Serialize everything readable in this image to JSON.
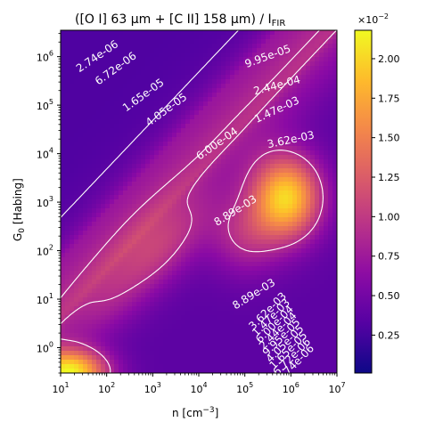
{
  "chart_data": {
    "type": "heatmap",
    "title": "([O I] 63 μm + [C II] 158 μm) / I",
    "title_sub": "FIR",
    "xlabel": "n [cm",
    "xlabel_sup": "−3",
    "xlabel_end": "]",
    "ylabel": "G",
    "ylabel_sub": "0",
    "ylabel_end": " [Habing]",
    "x_scale": "log",
    "y_scale": "log",
    "xlim": [
      10,
      10000000
    ],
    "ylim": [
      0.3,
      3500000
    ],
    "x_ticks": [
      {
        "value": 10,
        "base": "10",
        "exp": "1"
      },
      {
        "value": 100,
        "base": "10",
        "exp": "2"
      },
      {
        "value": 1000,
        "base": "10",
        "exp": "3"
      },
      {
        "value": 10000,
        "base": "10",
        "exp": "4"
      },
      {
        "value": 100000,
        "base": "10",
        "exp": "5"
      },
      {
        "value": 1000000,
        "base": "10",
        "exp": "6"
      },
      {
        "value": 10000000,
        "base": "10",
        "exp": "7"
      }
    ],
    "y_ticks": [
      {
        "value": 1,
        "base": "10",
        "exp": "0"
      },
      {
        "value": 10,
        "base": "10",
        "exp": "1"
      },
      {
        "value": 100,
        "base": "10",
        "exp": "2"
      },
      {
        "value": 1000,
        "base": "10",
        "exp": "3"
      },
      {
        "value": 10000,
        "base": "10",
        "exp": "4"
      },
      {
        "value": 100000,
        "base": "10",
        "exp": "5"
      },
      {
        "value": 1000000,
        "base": "10",
        "exp": "6"
      }
    ],
    "colormap": "plasma",
    "colorbar": {
      "range": [
        0.0001,
        0.0218
      ],
      "ticks": [
        0.0025,
        0.005,
        0.0075,
        0.01,
        0.0125,
        0.015,
        0.0175,
        0.02
      ],
      "tick_labels": [
        "0.25",
        "0.50",
        "0.75",
        "1.00",
        "1.25",
        "1.50",
        "1.75",
        "2.00"
      ],
      "multiplier_base": "×10",
      "multiplier_exp": "−2"
    },
    "contour_levels": [
      {
        "value": 2.74e-06,
        "label": "2.74e-06",
        "color": "#ffffff"
      },
      {
        "value": 6.72e-06,
        "label": "6.72e-06",
        "color": "#ffffff"
      },
      {
        "value": 1.65e-05,
        "label": "1.65e-05",
        "color": "#ffffff"
      },
      {
        "value": 4.05e-05,
        "label": "4.05e-05",
        "color": "#ffffff"
      },
      {
        "value": 9.95e-05,
        "label": "9.95e-05",
        "color": "#ffffff"
      },
      {
        "value": 0.000244,
        "label": "2.44e-04",
        "color": "#ffffff"
      },
      {
        "value": 0.0006,
        "label": "6.00e-04",
        "color": "#ffffff"
      },
      {
        "value": 0.00147,
        "label": "1.47e-03",
        "color": "#ffffff"
      },
      {
        "value": 0.00362,
        "label": "3.62e-03",
        "color": "#ffffff"
      },
      {
        "value": 0.00889,
        "label": "8.89e-03",
        "color": "#ffffff"
      }
    ],
    "lower_right_labels": [
      "3.62e-03",
      "1.47e-03",
      "6.00e-04",
      "2.44e-04",
      "9.95e-05",
      "4.05e-05",
      "1.65e-05",
      "6.72e-06",
      "2.74e-06"
    ]
  }
}
